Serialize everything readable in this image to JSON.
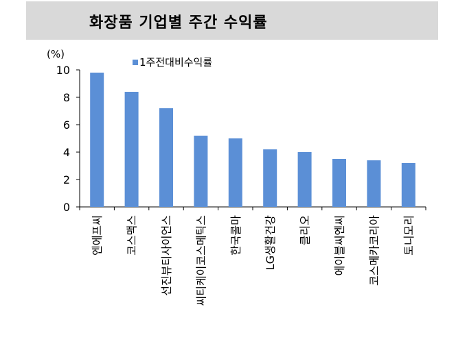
{
  "title": "화장품 기업별 주간 수익률",
  "chart_data": {
    "type": "bar",
    "title": "화장품 기업별 주간 수익률",
    "ylabel": "(%)",
    "xlabel": "",
    "ylim": [
      0,
      10
    ],
    "yticks": [
      0,
      2,
      4,
      6,
      8,
      10
    ],
    "grid": false,
    "legend_position": "top",
    "bar_color": "#5b8fd6",
    "categories": [
      "엔에프씨",
      "코스맥스",
      "선진뷰티사이언스",
      "씨티케이코스메틱스",
      "한국콜마",
      "LG생활건강",
      "클리오",
      "에이블씨엔씨",
      "코스메카코리아",
      "토니모리"
    ],
    "series": [
      {
        "name": "1주전대비수익률",
        "values": [
          9.8,
          8.4,
          7.2,
          5.2,
          5.0,
          4.2,
          4.0,
          3.5,
          3.4,
          3.2
        ]
      }
    ]
  }
}
